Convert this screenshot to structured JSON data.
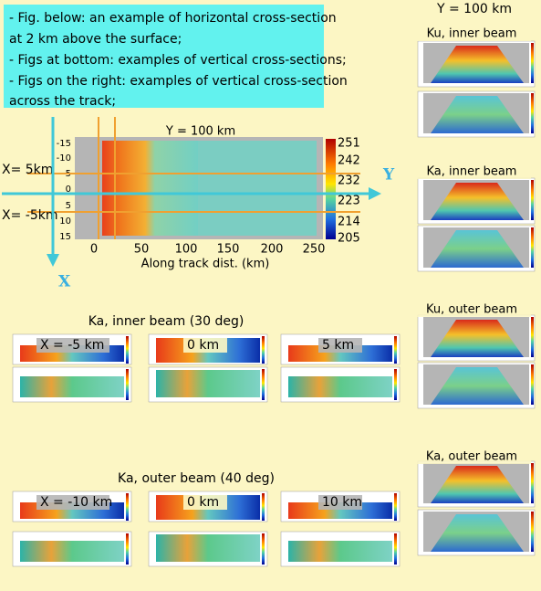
{
  "note": {
    "lines": [
      "- Fig. below: an example of horizontal cross-section",
      "at 2 km above the surface;",
      "- Figs at bottom: examples of vertical cross-sections;",
      "- Figs on the right: examples of vertical cross-section",
      "across the track;"
    ]
  },
  "main_figure": {
    "title": "Y = 100 km",
    "yticks": [
      "-15",
      "-10",
      "-5",
      "0",
      "5",
      "10",
      "15"
    ],
    "xticks": [
      "50",
      "100",
      "150",
      "200",
      "250"
    ],
    "xticks_zero": "0",
    "x_label": "Along track dist. (km)",
    "colorbar": [
      "251",
      "242",
      "232",
      "223",
      "214",
      "205"
    ],
    "line_labels": [
      "X= 5km",
      "X= -5km"
    ],
    "axis_y": "Y",
    "axis_x": "X"
  },
  "right_column": {
    "title": "Y = 100 km",
    "panels": [
      "Ku, inner beam",
      "Ka, inner beam",
      "Ku, outer beam",
      "Ka, outer beam"
    ]
  },
  "bottom_sections": [
    {
      "title": "Ka, inner  beam (30 deg)",
      "panels": [
        "X = -5 km",
        "0 km",
        "5 km"
      ]
    },
    {
      "title": "Ka, outer  beam (40 deg)",
      "panels": [
        "X = -10 km",
        "0 km",
        "10 km"
      ]
    }
  ]
}
